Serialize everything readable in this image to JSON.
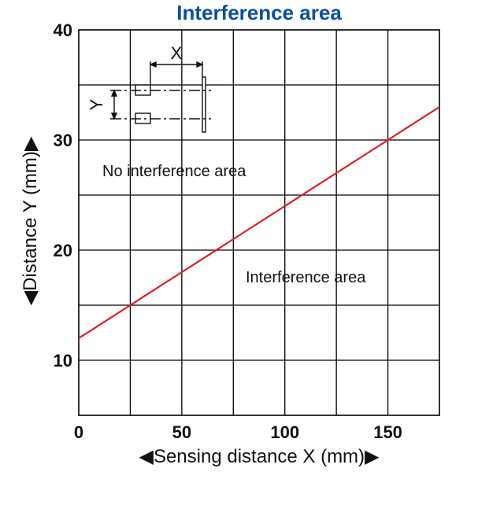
{
  "chart_data": {
    "type": "line",
    "title": "Interference area",
    "xlabel": "◀Sensing distance X (mm)▶",
    "ylabel": "◀Distance Y (mm)▶",
    "xlim": [
      0,
      175
    ],
    "ylim": [
      5,
      40
    ],
    "x_ticks": [
      0,
      50,
      100,
      150
    ],
    "y_ticks": [
      10,
      20,
      30,
      40
    ],
    "grid": true,
    "series": [
      {
        "x": [
          0,
          25,
          50,
          75,
          100,
          125,
          150,
          175
        ],
        "y": [
          12,
          15,
          18,
          21,
          24,
          27,
          30,
          33
        ]
      }
    ],
    "annotations": {
      "upper_region": "No interference area",
      "lower_region": "Interference area"
    },
    "inset": {
      "x_label": "X",
      "y_label": "Y"
    },
    "colors": {
      "line": "#e01b22",
      "title": "#0b4ea2",
      "grid": "#000000"
    }
  }
}
